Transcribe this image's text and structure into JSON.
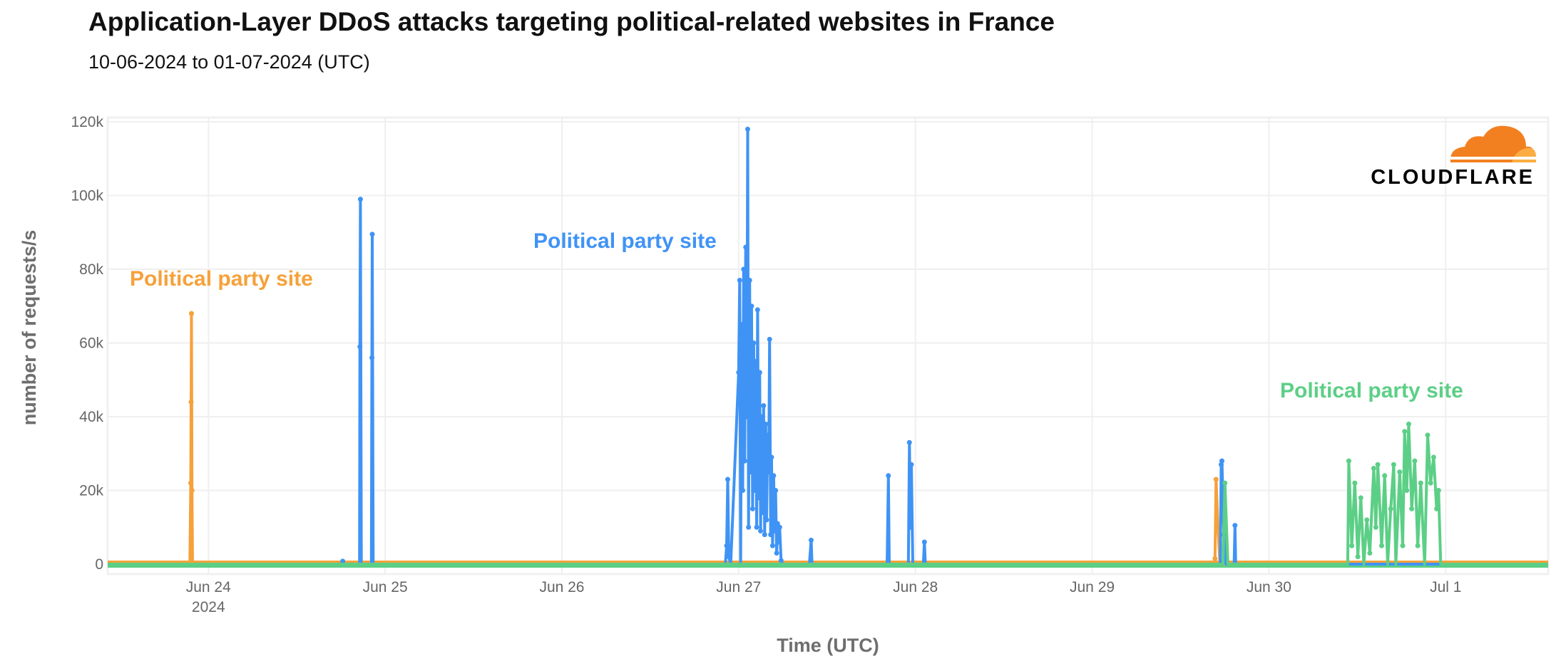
{
  "chart_data": {
    "type": "line",
    "title": "Application-Layer DDoS attacks targeting political-related websites in France",
    "subtitle": "10-06-2024 to 01-07-2024 (UTC)",
    "xlabel": "Time (UTC)",
    "ylabel": "number of requests/s",
    "x_unit": "days since Jun 24 2024 00:00 UTC",
    "xlim": [
      -0.57,
      7.58
    ],
    "ylim": [
      0,
      120000
    ],
    "grid": true,
    "x_ticks": [
      {
        "value": 0,
        "label": "Jun 24",
        "sub": "2024"
      },
      {
        "value": 1,
        "label": "Jun 25"
      },
      {
        "value": 2,
        "label": "Jun 26"
      },
      {
        "value": 3,
        "label": "Jun 27"
      },
      {
        "value": 4,
        "label": "Jun 28"
      },
      {
        "value": 5,
        "label": "Jun 29"
      },
      {
        "value": 6,
        "label": "Jun 30"
      },
      {
        "value": 7,
        "label": "Jul 1"
      }
    ],
    "y_ticks": [
      {
        "value": 0,
        "label": "0"
      },
      {
        "value": 20000,
        "label": "20k"
      },
      {
        "value": 40000,
        "label": "40k"
      },
      {
        "value": 60000,
        "label": "60k"
      },
      {
        "value": 80000,
        "label": "80k"
      },
      {
        "value": 100000,
        "label": "100k"
      },
      {
        "value": 120000,
        "label": "120k"
      }
    ],
    "series": [
      {
        "name": "orange-site",
        "color": "#f6a13a",
        "points": [
          [
            -0.57,
            0
          ],
          [
            -0.105,
            0
          ],
          [
            -0.1,
            22000
          ],
          [
            -0.098,
            44000
          ],
          [
            -0.096,
            68000
          ],
          [
            -0.093,
            20000
          ],
          [
            -0.09,
            0
          ],
          [
            5.69,
            0
          ],
          [
            5.695,
            1500
          ],
          [
            5.701,
            23000
          ],
          [
            5.712,
            10000
          ],
          [
            5.723,
            0
          ],
          [
            7.58,
            0
          ]
        ]
      },
      {
        "name": "blue-site",
        "color": "#3f93f5",
        "points": [
          [
            -0.57,
            0
          ],
          [
            0.75,
            0
          ],
          [
            0.76,
            800
          ],
          [
            0.77,
            0
          ],
          [
            0.855,
            0
          ],
          [
            0.857,
            59000
          ],
          [
            0.86,
            99000
          ],
          [
            0.865,
            0
          ],
          [
            0.922,
            0
          ],
          [
            0.925,
            56000
          ],
          [
            0.927,
            89500
          ],
          [
            0.932,
            0
          ],
          [
            2.925,
            0
          ],
          [
            2.932,
            5000
          ],
          [
            2.938,
            23000
          ],
          [
            2.944,
            2000
          ],
          [
            2.955,
            0
          ],
          [
            3.0,
            52000
          ],
          [
            3.006,
            77000
          ],
          [
            3.011,
            0
          ],
          [
            3.017,
            65000
          ],
          [
            3.023,
            20000
          ],
          [
            3.028,
            80000
          ],
          [
            3.034,
            28000
          ],
          [
            3.04,
            86000
          ],
          [
            3.046,
            40000
          ],
          [
            3.051,
            118000
          ],
          [
            3.056,
            10000
          ],
          [
            3.062,
            77000
          ],
          [
            3.068,
            25000
          ],
          [
            3.073,
            70000
          ],
          [
            3.079,
            15000
          ],
          [
            3.085,
            60000
          ],
          [
            3.09,
            20000
          ],
          [
            3.096,
            55000
          ],
          [
            3.102,
            10000
          ],
          [
            3.107,
            69000
          ],
          [
            3.113,
            18000
          ],
          [
            3.119,
            52000
          ],
          [
            3.124,
            9000
          ],
          [
            3.13,
            40000
          ],
          [
            3.136,
            14000
          ],
          [
            3.141,
            43000
          ],
          [
            3.147,
            8000
          ],
          [
            3.153,
            38000
          ],
          [
            3.158,
            12000
          ],
          [
            3.164,
            35000
          ],
          [
            3.17,
            25000
          ],
          [
            3.175,
            61000
          ],
          [
            3.181,
            8000
          ],
          [
            3.186,
            29000
          ],
          [
            3.192,
            5000
          ],
          [
            3.198,
            24000
          ],
          [
            3.203,
            9000
          ],
          [
            3.209,
            20000
          ],
          [
            3.215,
            3000
          ],
          [
            3.22,
            11000
          ],
          [
            3.226,
            6000
          ],
          [
            3.232,
            10000
          ],
          [
            3.24,
            1000
          ],
          [
            3.25,
            0
          ],
          [
            3.4,
            0
          ],
          [
            3.41,
            6500
          ],
          [
            3.415,
            0
          ],
          [
            3.84,
            0
          ],
          [
            3.847,
            24000
          ],
          [
            3.852,
            0
          ],
          [
            3.96,
            0
          ],
          [
            3.966,
            33000
          ],
          [
            3.972,
            10000
          ],
          [
            3.977,
            27000
          ],
          [
            3.985,
            0
          ],
          [
            4.045,
            0
          ],
          [
            4.051,
            6000
          ],
          [
            4.056,
            0
          ],
          [
            5.725,
            0
          ],
          [
            5.73,
            27000
          ],
          [
            5.734,
            28000
          ],
          [
            5.745,
            8000
          ],
          [
            5.757,
            0
          ],
          [
            5.803,
            0
          ],
          [
            5.808,
            10500
          ],
          [
            5.812,
            0
          ],
          [
            7.58,
            0
          ]
        ]
      },
      {
        "name": "green-site",
        "color": "#5ccf86",
        "points": [
          [
            -0.57,
            0
          ],
          [
            5.74,
            0
          ],
          [
            5.751,
            22000
          ],
          [
            5.768,
            0
          ],
          [
            6.446,
            0
          ],
          [
            6.452,
            28000
          ],
          [
            6.469,
            5000
          ],
          [
            6.486,
            22000
          ],
          [
            6.503,
            2000
          ],
          [
            6.52,
            18000
          ],
          [
            6.537,
            0
          ],
          [
            6.554,
            12000
          ],
          [
            6.571,
            3000
          ],
          [
            6.593,
            26000
          ],
          [
            6.605,
            10000
          ],
          [
            6.616,
            27000
          ],
          [
            6.638,
            5000
          ],
          [
            6.655,
            24000
          ],
          [
            6.672,
            0
          ],
          [
            6.689,
            15000
          ],
          [
            6.706,
            27000
          ],
          [
            6.718,
            0
          ],
          [
            6.74,
            25000
          ],
          [
            6.757,
            5000
          ],
          [
            6.768,
            36000
          ],
          [
            6.78,
            20000
          ],
          [
            6.791,
            38000
          ],
          [
            6.808,
            15000
          ],
          [
            6.825,
            28000
          ],
          [
            6.842,
            5000
          ],
          [
            6.859,
            22000
          ],
          [
            6.881,
            0
          ],
          [
            6.898,
            35000
          ],
          [
            6.915,
            22000
          ],
          [
            6.932,
            29000
          ],
          [
            6.949,
            15000
          ],
          [
            6.96,
            20000
          ],
          [
            6.972,
            0
          ],
          [
            7.58,
            0
          ]
        ]
      }
    ],
    "annotations": [
      {
        "text": "Political party site",
        "color": "#f6a13a",
        "series": "orange-site"
      },
      {
        "text": "Political party site",
        "color": "#3f93f5",
        "series": "blue-site"
      },
      {
        "text": "Political party site",
        "color": "#5ccf86",
        "series": "green-site"
      }
    ]
  },
  "logo": {
    "text": "CLOUDFLARE",
    "color": "#f38020"
  }
}
